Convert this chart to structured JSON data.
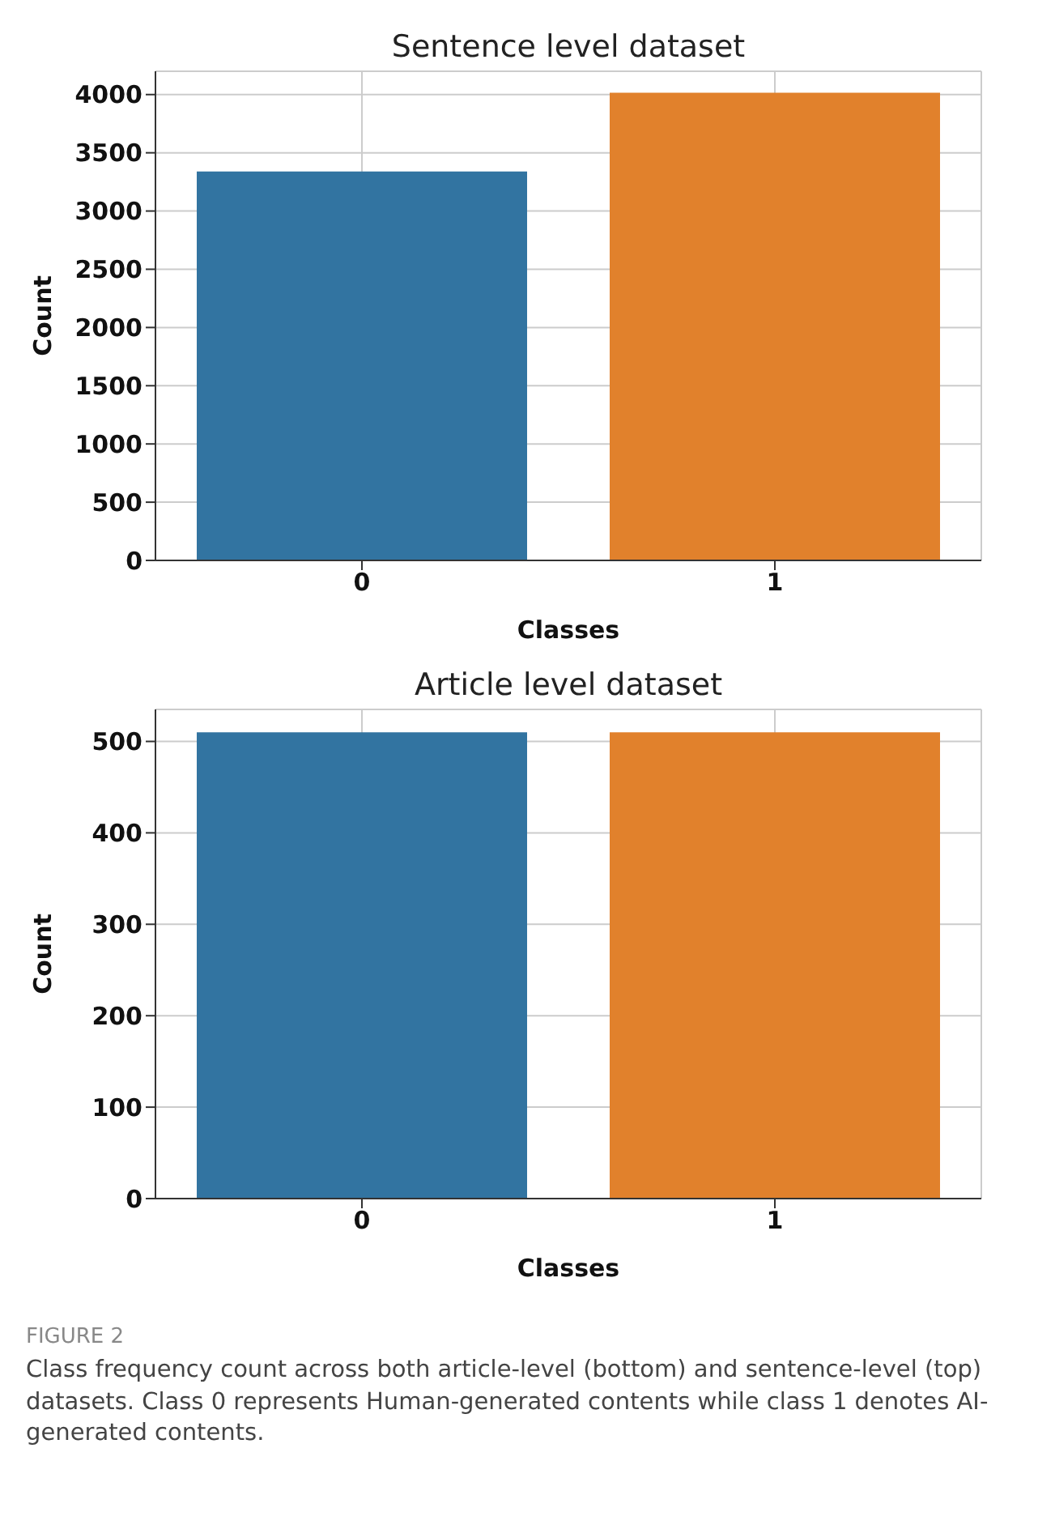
{
  "chart_data": [
    {
      "type": "bar",
      "title": "Sentence level dataset",
      "xlabel": "Classes",
      "ylabel": "Count",
      "categories": [
        "0",
        "1"
      ],
      "values": [
        3340,
        4015
      ],
      "colors": [
        "#3274a1",
        "#e1812c"
      ],
      "ylim": [
        0,
        4200
      ],
      "yticks": [
        0,
        500,
        1000,
        1500,
        2000,
        2500,
        3000,
        3500,
        4000
      ],
      "grid": true
    },
    {
      "type": "bar",
      "title": "Article level dataset",
      "xlabel": "Classes",
      "ylabel": "Count",
      "categories": [
        "0",
        "1"
      ],
      "values": [
        510,
        510
      ],
      "colors": [
        "#3274a1",
        "#e1812c"
      ],
      "ylim": [
        0,
        535
      ],
      "yticks": [
        0,
        100,
        200,
        300,
        400,
        500
      ],
      "grid": true,
      "annotations": [
        "FIGURE 2",
        "Class frequency count across both article-level (bottom) and sentence-level (top) datasets. Class 0 represents Human-generated contents while class 1 denotes AI-generated contents."
      ]
    }
  ]
}
